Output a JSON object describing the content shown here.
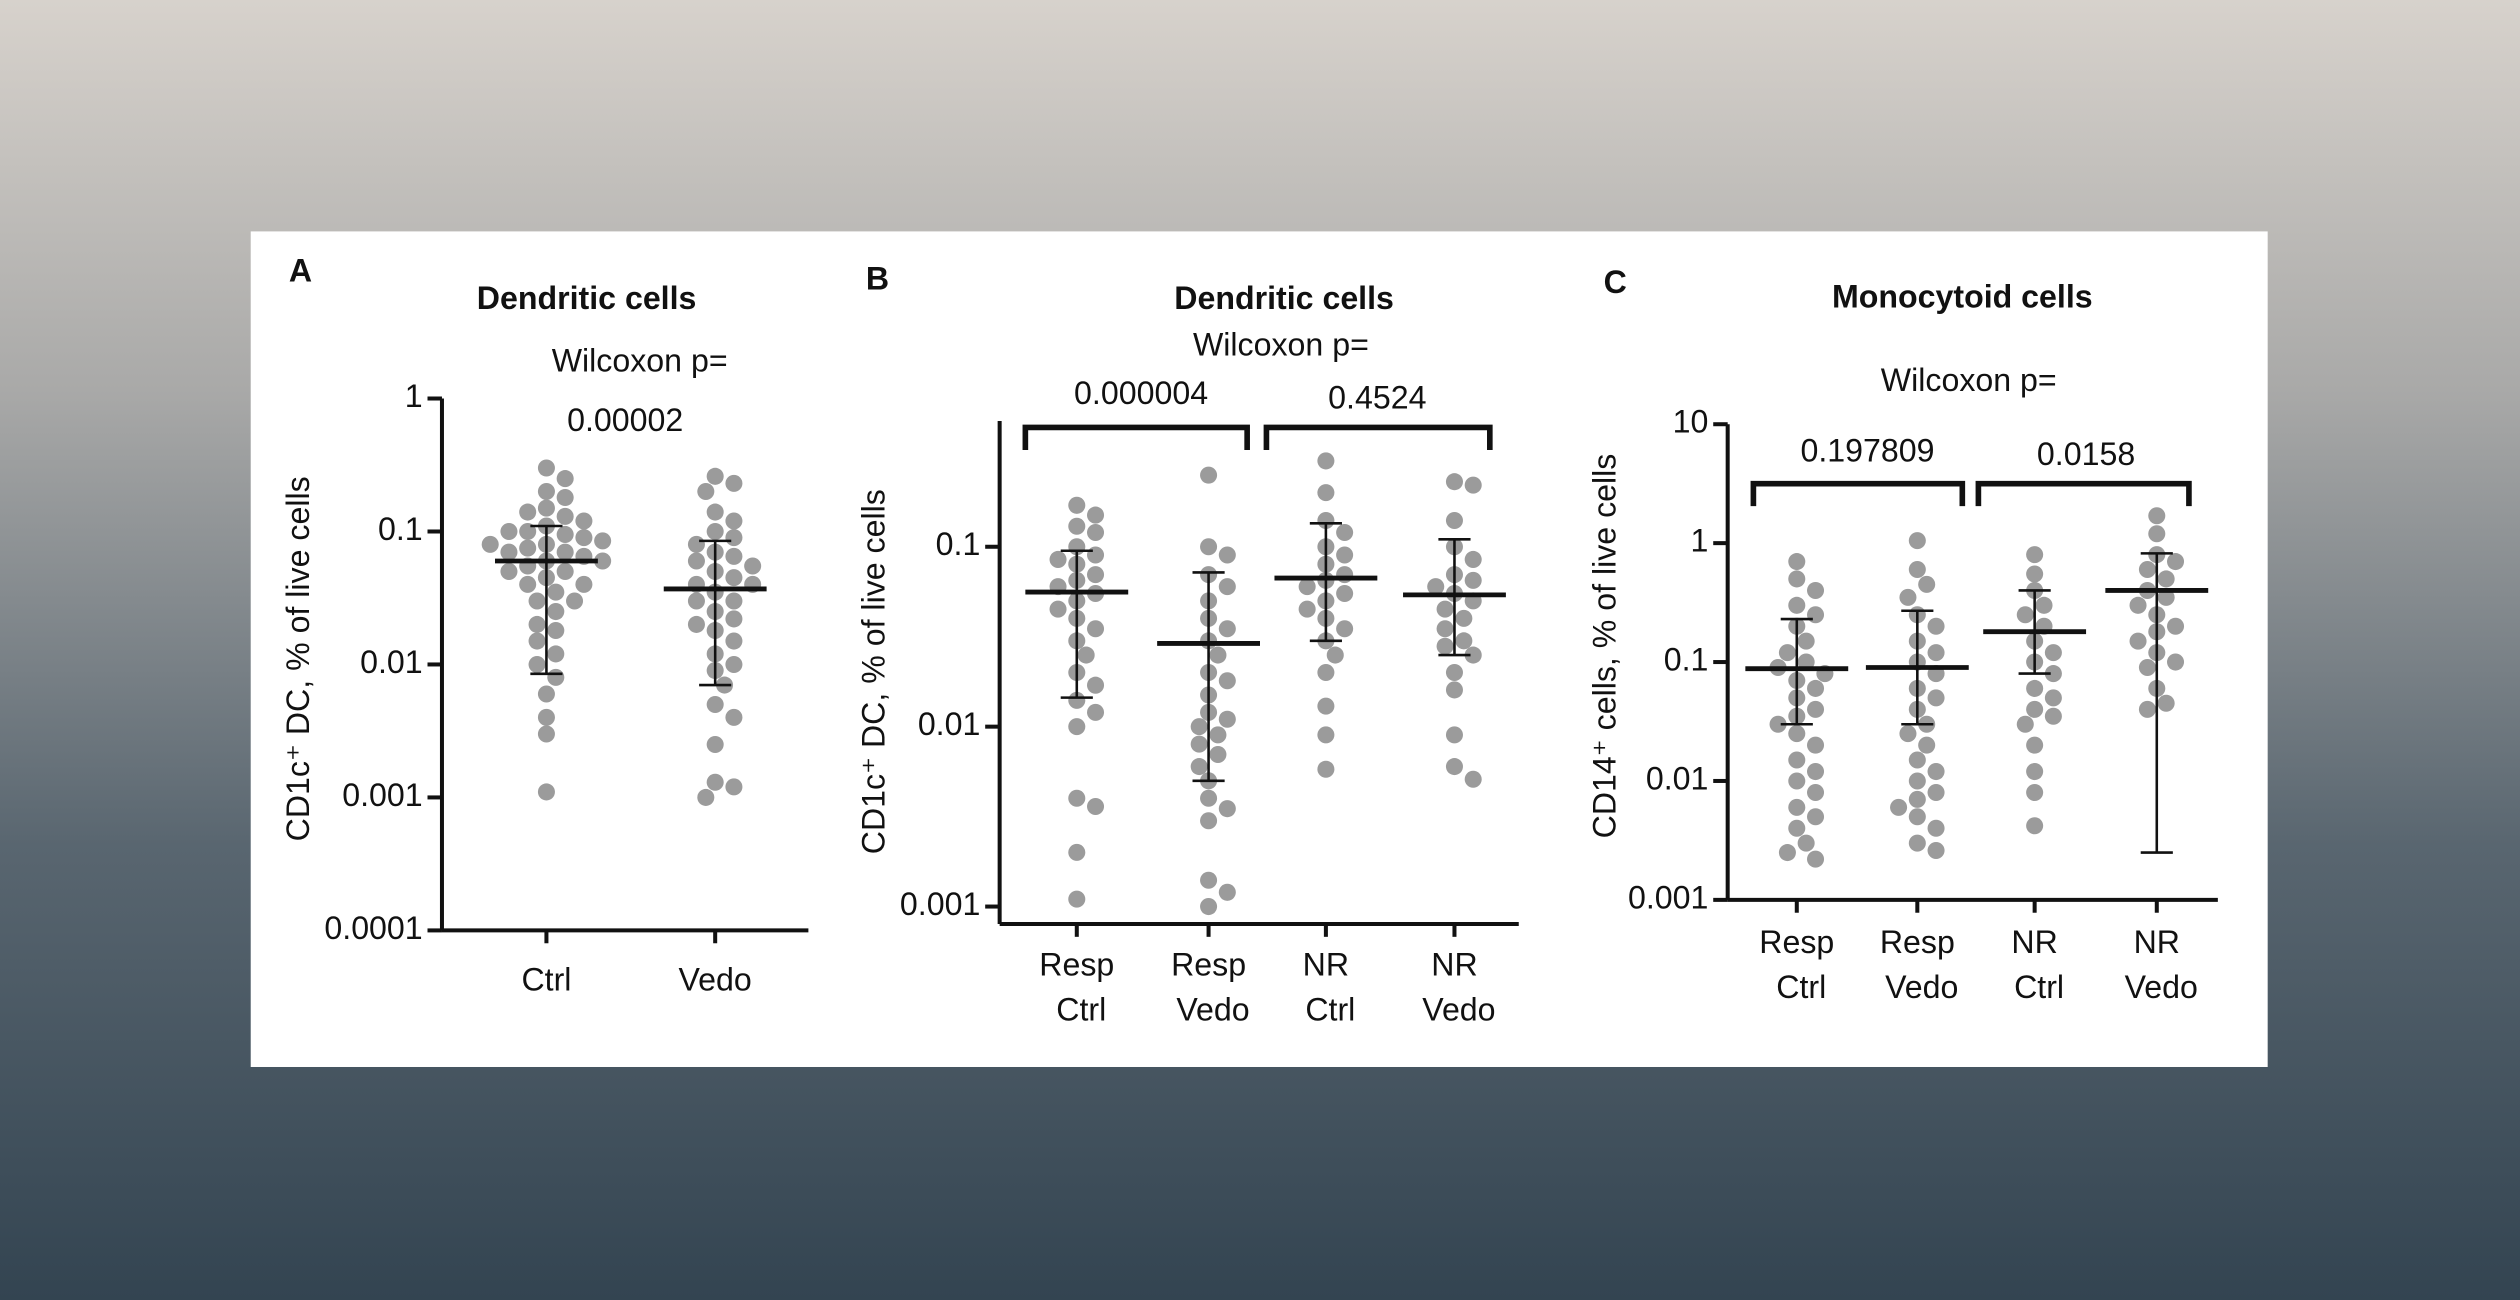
{
  "chart_data": [
    {
      "type": "dot",
      "panel_label": "A",
      "title": "Dendritic cells",
      "annotation": "Wilcoxon p=",
      "y_label": "CD1c⁺ DC, % of live cells",
      "log_scale": true,
      "ylim": [
        0.0001,
        1
      ],
      "yticks": [
        1,
        0.1,
        0.01,
        0.001,
        0.0001
      ],
      "brackets": false,
      "color": "#9b9b9b",
      "categories": [
        "Ctrl",
        "Vedo"
      ],
      "p_values": [
        "0.00002"
      ],
      "groups": [
        {
          "mean": 0.06,
          "lower": 0.0085,
          "upper": 0.11,
          "values": [
            0.3,
            0.25,
            0.2,
            0.18,
            0.15,
            0.14,
            0.13,
            0.12,
            0.11,
            0.1,
            0.1,
            0.095,
            0.09,
            0.085,
            0.08,
            0.08,
            0.075,
            0.07,
            0.07,
            0.065,
            0.06,
            0.06,
            0.055,
            0.05,
            0.05,
            0.045,
            0.04,
            0.04,
            0.035,
            0.03,
            0.03,
            0.025,
            0.02,
            0.018,
            0.015,
            0.012,
            0.01,
            0.008,
            0.006,
            0.004,
            0.003,
            0.0011
          ]
        },
        {
          "mean": 0.037,
          "lower": 0.007,
          "upper": 0.085,
          "values": [
            0.26,
            0.23,
            0.2,
            0.14,
            0.12,
            0.1,
            0.09,
            0.08,
            0.07,
            0.065,
            0.06,
            0.055,
            0.05,
            0.045,
            0.04,
            0.04,
            0.035,
            0.03,
            0.03,
            0.025,
            0.022,
            0.02,
            0.018,
            0.015,
            0.012,
            0.01,
            0.009,
            0.007,
            0.005,
            0.004,
            0.0025,
            0.0013,
            0.0012,
            0.001
          ]
        }
      ]
    },
    {
      "type": "dot",
      "panel_label": "B",
      "title": "Dendritic cells",
      "annotation": "Wilcoxon p=",
      "y_label": "CD1c⁺ DC, % of live cells",
      "log_scale": true,
      "ylim": [
        0.0008,
        0.5
      ],
      "yticks": [
        0.1,
        0.01,
        0.001
      ],
      "brackets": true,
      "color": "#9b9b9b",
      "categories": [
        "Resp Ctrl",
        "Resp Vedo",
        "NR Ctrl",
        "NR Vedo"
      ],
      "p_values": [
        "0.000004",
        "0.4524"
      ],
      "groups": [
        {
          "mean": 0.056,
          "lower": 0.0145,
          "upper": 0.095,
          "values": [
            0.17,
            0.15,
            0.13,
            0.12,
            0.1,
            0.09,
            0.085,
            0.08,
            0.07,
            0.065,
            0.06,
            0.055,
            0.05,
            0.045,
            0.04,
            0.035,
            0.03,
            0.025,
            0.02,
            0.017,
            0.014,
            0.012,
            0.01,
            0.004,
            0.0036,
            0.002,
            0.0011
          ]
        },
        {
          "mean": 0.029,
          "lower": 0.005,
          "upper": 0.072,
          "values": [
            0.25,
            0.1,
            0.09,
            0.07,
            0.06,
            0.05,
            0.04,
            0.035,
            0.03,
            0.025,
            0.02,
            0.018,
            0.015,
            0.012,
            0.011,
            0.01,
            0.009,
            0.008,
            0.007,
            0.006,
            0.005,
            0.004,
            0.0035,
            0.003,
            0.0014,
            0.0012,
            0.001
          ]
        },
        {
          "mean": 0.067,
          "lower": 0.03,
          "upper": 0.135,
          "values": [
            0.3,
            0.2,
            0.14,
            0.12,
            0.1,
            0.09,
            0.08,
            0.07,
            0.065,
            0.06,
            0.055,
            0.05,
            0.045,
            0.04,
            0.035,
            0.03,
            0.025,
            0.02,
            0.013,
            0.009,
            0.0058
          ]
        },
        {
          "mean": 0.054,
          "lower": 0.025,
          "upper": 0.11,
          "values": [
            0.23,
            0.22,
            0.14,
            0.1,
            0.085,
            0.07,
            0.065,
            0.06,
            0.055,
            0.05,
            0.045,
            0.04,
            0.035,
            0.03,
            0.028,
            0.025,
            0.02,
            0.016,
            0.009,
            0.006,
            0.0051
          ]
        }
      ]
    },
    {
      "type": "dot",
      "panel_label": "C",
      "title": "Monocytoid cells",
      "annotation": "Wilcoxon p=",
      "y_label": "CD14⁺ cells, % of live cells",
      "log_scale": true,
      "ylim": [
        0.001,
        10
      ],
      "yticks": [
        10,
        1,
        0.1,
        0.01,
        0.001
      ],
      "brackets": true,
      "color": "#9b9b9b",
      "categories": [
        "Resp Ctrl",
        "Resp Vedo",
        "NR Ctrl",
        "NR Vedo"
      ],
      "p_values": [
        "0.197809",
        "0.0158"
      ],
      "groups": [
        {
          "mean": 0.088,
          "lower": 0.03,
          "upper": 0.23,
          "values": [
            0.7,
            0.5,
            0.4,
            0.3,
            0.25,
            0.2,
            0.15,
            0.12,
            0.1,
            0.09,
            0.08,
            0.07,
            0.06,
            0.05,
            0.04,
            0.035,
            0.03,
            0.025,
            0.02,
            0.015,
            0.012,
            0.01,
            0.008,
            0.006,
            0.005,
            0.004,
            0.003,
            0.0025,
            0.0022
          ]
        },
        {
          "mean": 0.09,
          "lower": 0.03,
          "upper": 0.27,
          "values": [
            1.05,
            0.6,
            0.45,
            0.35,
            0.25,
            0.2,
            0.15,
            0.12,
            0.1,
            0.08,
            0.06,
            0.05,
            0.04,
            0.03,
            0.025,
            0.02,
            0.015,
            0.012,
            0.01,
            0.008,
            0.007,
            0.006,
            0.005,
            0.004,
            0.003,
            0.0026
          ]
        },
        {
          "mean": 0.18,
          "lower": 0.08,
          "upper": 0.4,
          "values": [
            0.8,
            0.55,
            0.4,
            0.3,
            0.25,
            0.2,
            0.15,
            0.12,
            0.1,
            0.08,
            0.06,
            0.05,
            0.04,
            0.035,
            0.03,
            0.02,
            0.012,
            0.008,
            0.0042
          ]
        },
        {
          "mean": 0.4,
          "lower": 0.0025,
          "upper": 0.82,
          "values": [
            1.7,
            1.2,
            0.8,
            0.7,
            0.6,
            0.5,
            0.4,
            0.35,
            0.3,
            0.25,
            0.2,
            0.18,
            0.15,
            0.12,
            0.1,
            0.09,
            0.06,
            0.045,
            0.04
          ]
        }
      ]
    }
  ]
}
